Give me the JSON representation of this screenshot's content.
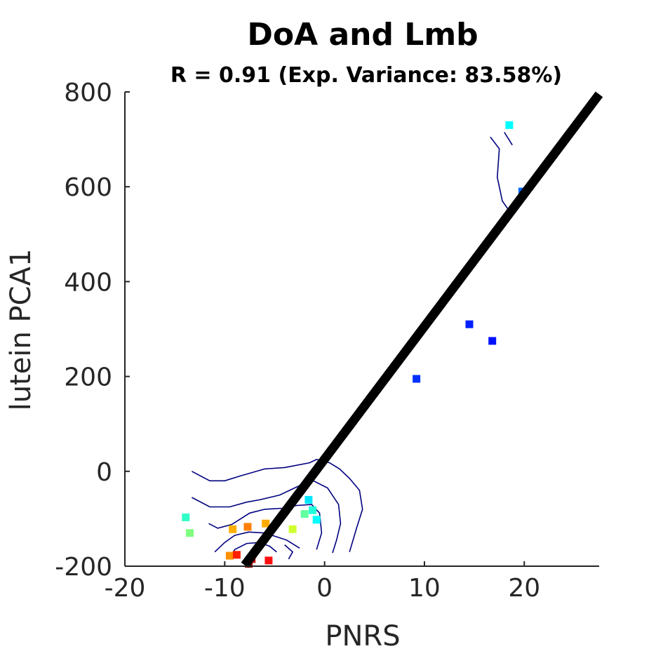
{
  "chart_data": {
    "type": "scatter",
    "title": "DoA and Lmb",
    "subtitle": "R = 0.91 (Exp. Variance: 83.58%)",
    "xlabel": "PNRS",
    "ylabel": "lutein PCA1",
    "xlim": [
      -20,
      27.5
    ],
    "ylim": [
      -200,
      800
    ],
    "xticks": [
      -20,
      -10,
      0,
      10,
      20
    ],
    "xtick_labels": [
      "-20",
      "-10",
      "0",
      "10",
      "20"
    ],
    "yticks": [
      -200,
      0,
      200,
      400,
      600,
      800
    ],
    "ytick_labels": [
      "-200",
      "0",
      "200",
      "400",
      "600",
      "800"
    ],
    "grid": false,
    "points": [
      {
        "x": 18.5,
        "y": 730,
        "color": "#00ffff"
      },
      {
        "x": 19.8,
        "y": 590,
        "color": "#0066ff"
      },
      {
        "x": 14.5,
        "y": 310,
        "color": "#0020ff"
      },
      {
        "x": 16.8,
        "y": 275,
        "color": "#0010ff"
      },
      {
        "x": 9.2,
        "y": 195,
        "color": "#0030ff"
      },
      {
        "x": -13.9,
        "y": -97,
        "color": "#30ffc8"
      },
      {
        "x": -13.5,
        "y": -130,
        "color": "#80ff80"
      },
      {
        "x": -9.2,
        "y": -122,
        "color": "#ffb000"
      },
      {
        "x": -7.7,
        "y": -117,
        "color": "#ff8000"
      },
      {
        "x": -5.9,
        "y": -110,
        "color": "#ffaa00"
      },
      {
        "x": -3.2,
        "y": -122,
        "color": "#d0ff30"
      },
      {
        "x": -1.6,
        "y": -60,
        "color": "#00e8ff"
      },
      {
        "x": -1.2,
        "y": -82,
        "color": "#20ffd8"
      },
      {
        "x": -2.0,
        "y": -90,
        "color": "#60ffa0"
      },
      {
        "x": -0.8,
        "y": -102,
        "color": "#00ffff"
      },
      {
        "x": -9.5,
        "y": -178,
        "color": "#ff9000"
      },
      {
        "x": -8.8,
        "y": -176,
        "color": "#ff2000"
      },
      {
        "x": -7.3,
        "y": -185,
        "color": "#c00000"
      },
      {
        "x": -7.6,
        "y": -195,
        "color": "#900000"
      },
      {
        "x": -5.6,
        "y": -188,
        "color": "#ff1010"
      }
    ],
    "fit_line": {
      "x": [
        -8.0,
        27.5
      ],
      "y": [
        -198,
        795
      ],
      "color": "#000000"
    },
    "contours": {
      "color": "#000080",
      "lines": [
        [
          [
            -13.3,
            0
          ],
          [
            -11.5,
            -20
          ],
          [
            -10.0,
            -20
          ],
          [
            -8.5,
            -10
          ],
          [
            -6.0,
            5
          ],
          [
            -4.0,
            8
          ],
          [
            -1.5,
            18
          ],
          [
            -0.8,
            25
          ],
          [
            0.5,
            18
          ],
          [
            1.5,
            5
          ],
          [
            2.5,
            -15
          ],
          [
            3.5,
            -40
          ],
          [
            3.8,
            -80
          ],
          [
            3.2,
            -120
          ],
          [
            2.5,
            -170
          ]
        ],
        [
          [
            -13.3,
            -55
          ],
          [
            -11.5,
            -75
          ],
          [
            -9.5,
            -75
          ],
          [
            -7.8,
            -65
          ],
          [
            -6.5,
            -60
          ],
          [
            -4.5,
            -50
          ],
          [
            -2.5,
            -30
          ],
          [
            -1.3,
            -18
          ],
          [
            0.3,
            -35
          ],
          [
            1.4,
            -70
          ],
          [
            1.6,
            -110
          ],
          [
            1.2,
            -145
          ],
          [
            0.8,
            -172
          ]
        ],
        [
          [
            -11.6,
            -110
          ],
          [
            -10.7,
            -120
          ],
          [
            -9.3,
            -112
          ],
          [
            -7.5,
            -88
          ],
          [
            -6.0,
            -80
          ],
          [
            -4.3,
            -78
          ],
          [
            -2.8,
            -72
          ],
          [
            -1.3,
            -70
          ],
          [
            -0.5,
            -88
          ],
          [
            -0.3,
            -130
          ],
          [
            -0.8,
            -165
          ]
        ],
        [
          [
            -11.0,
            -170
          ],
          [
            -10.0,
            -150
          ],
          [
            -9.0,
            -135
          ],
          [
            -7.6,
            -128
          ],
          [
            -6.0,
            -130
          ],
          [
            -4.8,
            -138
          ],
          [
            -3.8,
            -145
          ],
          [
            -2.5,
            -162
          ]
        ],
        [
          [
            -9.5,
            -185
          ],
          [
            -9.0,
            -165
          ],
          [
            -7.8,
            -152
          ],
          [
            -6.5,
            -150
          ],
          [
            -5.5,
            -158
          ],
          [
            -4.8,
            -170
          ]
        ],
        [
          [
            -4.0,
            -155
          ],
          [
            -3.2,
            -170
          ],
          [
            -3.6,
            -185
          ]
        ],
        [
          [
            16.6,
            705
          ],
          [
            17.5,
            680
          ],
          [
            17.3,
            620
          ],
          [
            17.8,
            570
          ],
          [
            18.8,
            540
          ]
        ],
        [
          [
            18.0,
            715
          ],
          [
            18.8,
            688
          ]
        ]
      ]
    }
  }
}
